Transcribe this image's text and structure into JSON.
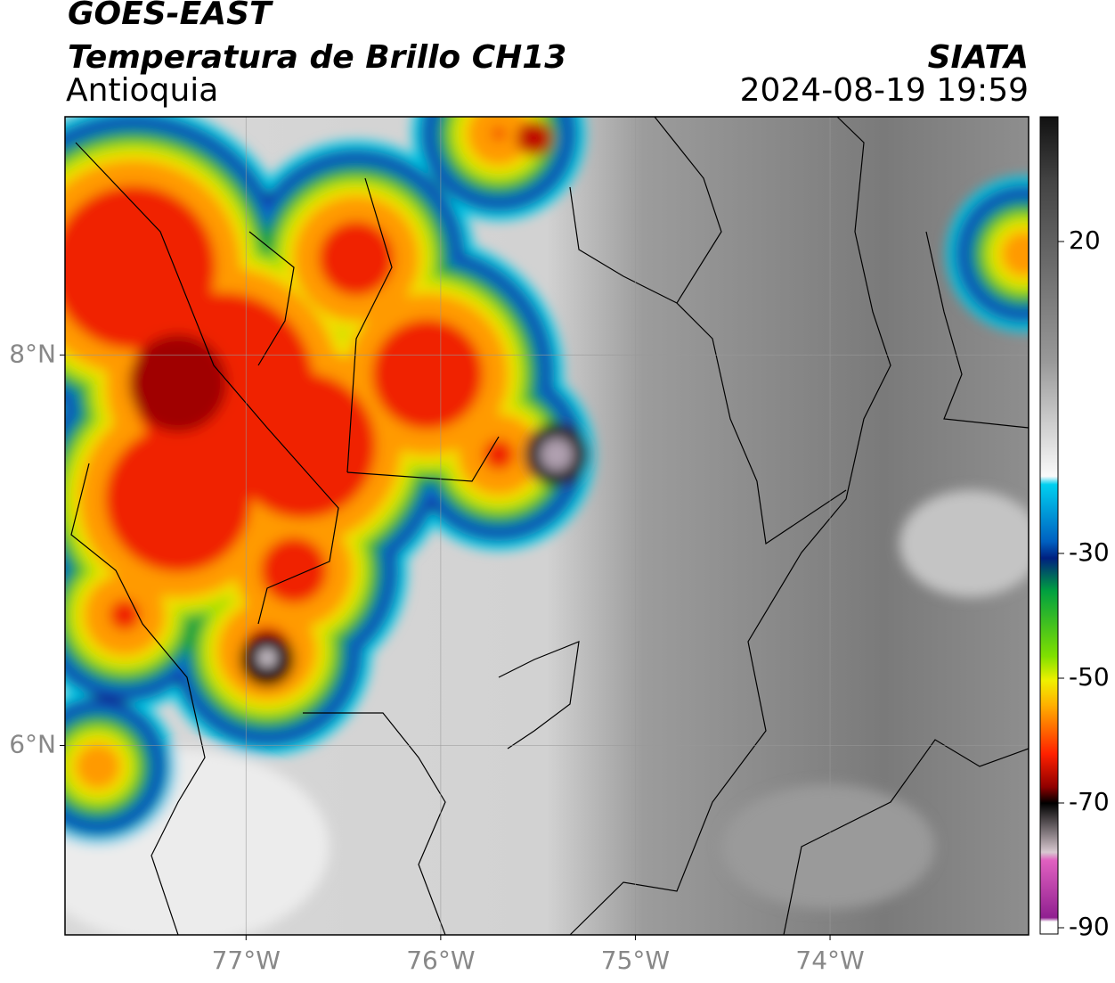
{
  "header": {
    "title": "GOES-EAST",
    "subtitle": "Temperatura de Brillo CH13",
    "region": "Antioquia",
    "source": "SIATA",
    "datetime": "2024-08-19 19:59"
  },
  "map": {
    "xlim": [
      -77.93,
      -72.98
    ],
    "ylim": [
      5.03,
      9.22
    ],
    "xticks": [
      {
        "value": -77,
        "label": "77°W"
      },
      {
        "value": -76,
        "label": "76°W"
      },
      {
        "value": -75,
        "label": "75°W"
      },
      {
        "value": -74,
        "label": "74°W"
      }
    ],
    "yticks": [
      {
        "value": 8,
        "label": "8°N"
      },
      {
        "value": 6,
        "label": "6°N"
      }
    ],
    "grid": true
  },
  "colorbar": {
    "clim": [
      -91,
      40
    ],
    "ticks": [
      20,
      -30,
      -50,
      -70,
      -90
    ]
  }
}
